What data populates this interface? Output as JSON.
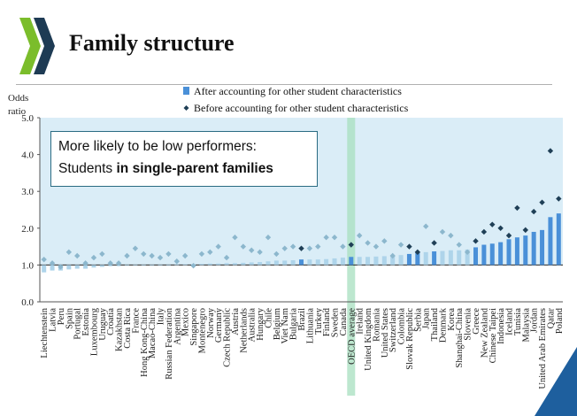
{
  "slide": {
    "title": "Family structure",
    "callout_line1": "More likely to be low performers:",
    "callout_prefix": "Students ",
    "callout_bold": "in single-parent families"
  },
  "colors": {
    "bar_dark": "#4a90d8",
    "bar_light": "#aed4ea",
    "marker_dark": "#1f3f56",
    "marker_light": "#8cb7cd",
    "band": "#daedf7",
    "oecd_band": "#a7dfbf",
    "logo_green": "#7bbd2b",
    "logo_dark": "#1e3b54",
    "callout_border": "#2a6b82"
  },
  "chart_data": {
    "type": "bar",
    "ylabel": "Odds ratio",
    "ylim": [
      0,
      5
    ],
    "yticks": [
      "0.0",
      "1.0",
      "2.0",
      "3.0",
      "4.0",
      "5.0"
    ],
    "highlight_category": "OECD average",
    "shaded_band_from": 1.0,
    "series": [
      {
        "name": "After accounting for other student characteristics",
        "kind": "bar"
      },
      {
        "name": "Before accounting for other student characteristics",
        "kind": "marker"
      }
    ],
    "points": [
      {
        "c": "Liechtenstein",
        "a": 0.8,
        "b": 1.15,
        "sig": false
      },
      {
        "c": "Latvia",
        "a": 0.85,
        "b": 1.05,
        "sig": false
      },
      {
        "c": "Peru",
        "a": 0.85,
        "b": 0.95,
        "sig": false
      },
      {
        "c": "Spain",
        "a": 0.88,
        "b": 1.35,
        "sig": false
      },
      {
        "c": "Portugal",
        "a": 0.9,
        "b": 1.25,
        "sig": false
      },
      {
        "c": "Estonia",
        "a": 0.9,
        "b": 1.05,
        "sig": false
      },
      {
        "c": "Luxembourg",
        "a": 0.93,
        "b": 1.2,
        "sig": false
      },
      {
        "c": "Uruguay",
        "a": 0.95,
        "b": 1.3,
        "sig": false
      },
      {
        "c": "Croatia",
        "a": 0.97,
        "b": 1.05,
        "sig": false
      },
      {
        "c": "Kazakhstan",
        "a": 0.97,
        "b": 1.05,
        "sig": false
      },
      {
        "c": "Costa Rica",
        "a": 0.98,
        "b": 1.25,
        "sig": false
      },
      {
        "c": "France",
        "a": 1.0,
        "b": 1.45,
        "sig": false
      },
      {
        "c": "Hong Kong-China",
        "a": 1.0,
        "b": 1.3,
        "sig": false
      },
      {
        "c": "Macao-China",
        "a": 1.0,
        "b": 1.25,
        "sig": false
      },
      {
        "c": "Italy",
        "a": 1.0,
        "b": 1.2,
        "sig": false
      },
      {
        "c": "Russian Federation",
        "a": 1.0,
        "b": 1.3,
        "sig": false
      },
      {
        "c": "Argentina",
        "a": 1.02,
        "b": 1.1,
        "sig": false
      },
      {
        "c": "Mexico",
        "a": 1.02,
        "b": 1.25,
        "sig": false
      },
      {
        "c": "Singapore",
        "a": 1.02,
        "b": 0.98,
        "sig": false
      },
      {
        "c": "Montenegro",
        "a": 1.03,
        "b": 1.3,
        "sig": false
      },
      {
        "c": "Norway",
        "a": 1.04,
        "b": 1.35,
        "sig": false
      },
      {
        "c": "Germany",
        "a": 1.04,
        "b": 1.5,
        "sig": false
      },
      {
        "c": "Czech Republic",
        "a": 1.05,
        "b": 1.2,
        "sig": false
      },
      {
        "c": "Austria",
        "a": 1.05,
        "b": 1.75,
        "sig": false
      },
      {
        "c": "Netherlands",
        "a": 1.06,
        "b": 1.5,
        "sig": false
      },
      {
        "c": "Australia",
        "a": 1.07,
        "b": 1.4,
        "sig": false
      },
      {
        "c": "Hungary",
        "a": 1.08,
        "b": 1.35,
        "sig": false
      },
      {
        "c": "Chile",
        "a": 1.1,
        "b": 1.75,
        "sig": false
      },
      {
        "c": "Belgium",
        "a": 1.12,
        "b": 1.3,
        "sig": false
      },
      {
        "c": "Viet Nam",
        "a": 1.12,
        "b": 1.45,
        "sig": false
      },
      {
        "c": "Bulgaria",
        "a": 1.13,
        "b": 1.5,
        "sig": false
      },
      {
        "c": "Brazil",
        "a": 1.15,
        "b": 1.45,
        "sig": true
      },
      {
        "c": "Lithuania",
        "a": 1.15,
        "b": 1.45,
        "sig": false
      },
      {
        "c": "Turkey",
        "a": 1.15,
        "b": 1.5,
        "sig": false
      },
      {
        "c": "Finland",
        "a": 1.16,
        "b": 1.75,
        "sig": false
      },
      {
        "c": "Sweden",
        "a": 1.18,
        "b": 1.75,
        "sig": false
      },
      {
        "c": "Canada",
        "a": 1.2,
        "b": 1.5,
        "sig": false
      },
      {
        "c": "OECD average",
        "a": 1.22,
        "b": 1.55,
        "sig": true
      },
      {
        "c": "Ireland",
        "a": 1.22,
        "b": 1.8,
        "sig": false
      },
      {
        "c": "United Kingdom",
        "a": 1.22,
        "b": 1.6,
        "sig": false
      },
      {
        "c": "Romania",
        "a": 1.23,
        "b": 1.5,
        "sig": false
      },
      {
        "c": "United States",
        "a": 1.24,
        "b": 1.65,
        "sig": false
      },
      {
        "c": "Switzerland",
        "a": 1.25,
        "b": 1.25,
        "sig": false
      },
      {
        "c": "Colombia",
        "a": 1.27,
        "b": 1.55,
        "sig": false
      },
      {
        "c": "Slovak Republic",
        "a": 1.3,
        "b": 1.5,
        "sig": true
      },
      {
        "c": "Serbia",
        "a": 1.35,
        "b": 1.35,
        "sig": true
      },
      {
        "c": "Japan",
        "a": 1.35,
        "b": 2.05,
        "sig": false
      },
      {
        "c": "Thailand",
        "a": 1.37,
        "b": 1.6,
        "sig": true
      },
      {
        "c": "Denmark",
        "a": 1.38,
        "b": 1.9,
        "sig": false
      },
      {
        "c": "Korea",
        "a": 1.4,
        "b": 1.8,
        "sig": false
      },
      {
        "c": "Shanghai-China",
        "a": 1.4,
        "b": 1.55,
        "sig": false
      },
      {
        "c": "Slovenia",
        "a": 1.42,
        "b": 1.35,
        "sig": false
      },
      {
        "c": "Greece",
        "a": 1.48,
        "b": 1.65,
        "sig": true
      },
      {
        "c": "New Zealand",
        "a": 1.55,
        "b": 1.9,
        "sig": true
      },
      {
        "c": "Chinese Taipei",
        "a": 1.58,
        "b": 2.1,
        "sig": true
      },
      {
        "c": "Indonesia",
        "a": 1.62,
        "b": 2.0,
        "sig": true
      },
      {
        "c": "Iceland",
        "a": 1.7,
        "b": 1.8,
        "sig": true
      },
      {
        "c": "Tunisia",
        "a": 1.75,
        "b": 2.55,
        "sig": true
      },
      {
        "c": "Malaysia",
        "a": 1.8,
        "b": 1.95,
        "sig": true
      },
      {
        "c": "Jordan",
        "a": 1.9,
        "b": 2.45,
        "sig": true
      },
      {
        "c": "United Arab Emirates",
        "a": 1.95,
        "b": 2.7,
        "sig": true
      },
      {
        "c": "Qatar",
        "a": 2.3,
        "b": 4.1,
        "sig": true
      },
      {
        "c": "Poland",
        "a": 2.4,
        "b": 2.8,
        "sig": true
      }
    ]
  }
}
